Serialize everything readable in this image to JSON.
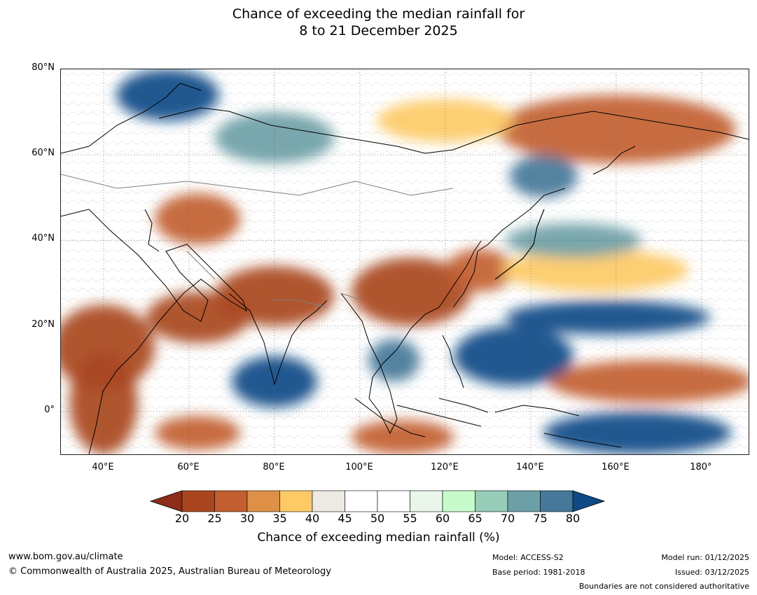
{
  "title": {
    "line1": "Chance of exceeding the median rainfall for",
    "line2": "8 to 21 December 2025"
  },
  "map": {
    "lat_range": [
      -10,
      80
    ],
    "lon_range": [
      30,
      191
    ],
    "lat_ticks": [
      {
        "value": 80,
        "label": "80°N"
      },
      {
        "value": 60,
        "label": "60°N"
      },
      {
        "value": 40,
        "label": "40°N"
      },
      {
        "value": 20,
        "label": "20°N"
      },
      {
        "value": 0,
        "label": "0°"
      }
    ],
    "lon_ticks": [
      {
        "value": 40,
        "label": "40°E"
      },
      {
        "value": 60,
        "label": "60°E"
      },
      {
        "value": 80,
        "label": "80°E"
      },
      {
        "value": 100,
        "label": "100°E"
      },
      {
        "value": 120,
        "label": "120°E"
      },
      {
        "value": 140,
        "label": "140°E"
      },
      {
        "value": 160,
        "label": "160°E"
      },
      {
        "value": 180,
        "label": "180°"
      }
    ],
    "coast_color": "#000000",
    "border_color": "#808080",
    "anomaly_regions": [
      {
        "name": "east-africa-arabia-dry",
        "lon": 40,
        "lat": 15,
        "rx": 12,
        "ry": 10,
        "pct": 20
      },
      {
        "name": "arabian-sea-dry",
        "lon": 62,
        "lat": 22,
        "rx": 12,
        "ry": 6,
        "pct": 20
      },
      {
        "name": "south-asia-himalaya-dry",
        "lon": 80,
        "lat": 27,
        "rx": 14,
        "ry": 7,
        "pct": 20
      },
      {
        "name": "south-china-dry",
        "lon": 112,
        "lat": 28,
        "rx": 14,
        "ry": 8,
        "pct": 20
      },
      {
        "name": "east-china-sea-dry",
        "lon": 128,
        "lat": 33,
        "rx": 8,
        "ry": 5,
        "pct": 25
      },
      {
        "name": "west-indian-ocean-dry",
        "lon": 40,
        "lat": 2,
        "rx": 8,
        "ry": 12,
        "pct": 20
      },
      {
        "name": "central-asia-dry",
        "lon": 62,
        "lat": 45,
        "rx": 10,
        "ry": 6,
        "pct": 25
      },
      {
        "name": "east-siberia-dry",
        "lon": 160,
        "lat": 66,
        "rx": 28,
        "ry": 8,
        "pct": 25
      },
      {
        "name": "north-siberia-dry",
        "lon": 120,
        "lat": 68,
        "rx": 16,
        "ry": 5,
        "pct": 35
      },
      {
        "name": "west-pacific-dry",
        "lon": 168,
        "lat": 7,
        "rx": 24,
        "ry": 5,
        "pct": 25
      },
      {
        "name": "southeast-indian-ocean-dry",
        "lon": 110,
        "lat": -6,
        "rx": 12,
        "ry": 4,
        "pct": 25
      },
      {
        "name": "southwest-indian-ocean-dry",
        "lon": 62,
        "lat": -5,
        "rx": 10,
        "ry": 4,
        "pct": 25
      },
      {
        "name": "north-pacific-dry",
        "lon": 155,
        "lat": 33,
        "rx": 22,
        "ry": 5,
        "pct": 35
      },
      {
        "name": "philippine-sea-wet",
        "lon": 136,
        "lat": 13,
        "rx": 14,
        "ry": 7,
        "pct": 80
      },
      {
        "name": "equatorial-indian-ocean-wet",
        "lon": 80,
        "lat": 7,
        "rx": 10,
        "ry": 6,
        "pct": 80
      },
      {
        "name": "northwest-pacific-wet",
        "lon": 158,
        "lat": 22,
        "rx": 24,
        "ry": 4,
        "pct": 80
      },
      {
        "name": "northern-australia-wet",
        "lon": 165,
        "lat": -5,
        "rx": 22,
        "ry": 5,
        "pct": 80
      },
      {
        "name": "scandinavia-wet",
        "lon": 55,
        "lat": 74,
        "rx": 12,
        "ry": 6,
        "pct": 80
      },
      {
        "name": "western-siberia-wet",
        "lon": 80,
        "lat": 64,
        "rx": 14,
        "ry": 6,
        "pct": 70
      },
      {
        "name": "sea-of-okhotsk-wet",
        "lon": 143,
        "lat": 55,
        "rx": 8,
        "ry": 5,
        "pct": 75
      },
      {
        "name": "south-china-sea-wet",
        "lon": 108,
        "lat": 12,
        "rx": 6,
        "ry": 5,
        "pct": 75
      },
      {
        "name": "northwest-pacific-scattered-wet",
        "lon": 150,
        "lat": 40,
        "rx": 16,
        "ry": 4,
        "pct": 70
      }
    ]
  },
  "colorbar": {
    "ticks": [
      "20",
      "25",
      "30",
      "35",
      "40",
      "45",
      "50",
      "55",
      "60",
      "65",
      "70",
      "75",
      "80"
    ],
    "under_color": "#8c2d19",
    "over_color": "#0f4a87",
    "colors": [
      "#a9461f",
      "#c25e2f",
      "#de9146",
      "#fdca66",
      "#ede9e3",
      "#ffffff",
      "#ffffff",
      "#e9f6e9",
      "#c7fbcc",
      "#97cdb9",
      "#6ca0a6",
      "#457899"
    ],
    "title": "Chance of exceeding median rainfall (%)"
  },
  "footer": {
    "website": "www.bom.gov.au/climate",
    "copyright": "© Commonwealth of Australia 2025, Australian Bureau of Meteorology",
    "model": "Model: ACCESS-S2",
    "base_period": "Base period: 1981-2018",
    "model_run": "Model run: 01/12/2025",
    "issued": "Issued: 03/12/2025",
    "disclaimer": "Boundaries are not considered authoritative"
  }
}
